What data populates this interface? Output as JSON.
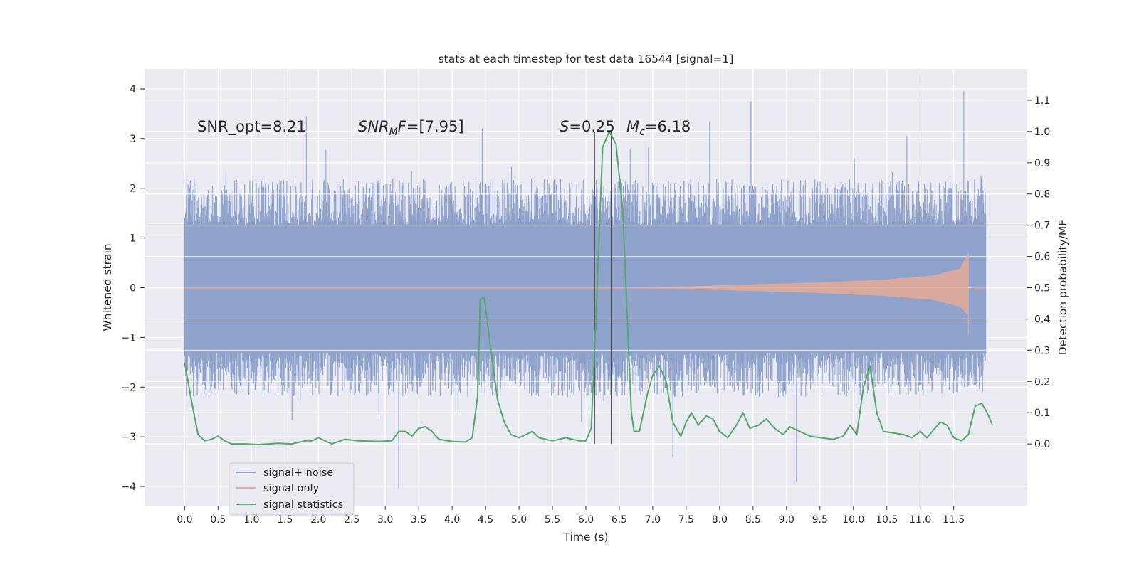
{
  "chart_data": {
    "type": "line",
    "title": "stats at each timestep for test data 16544 [signal=1]",
    "xlabel": "Time (s)",
    "ylabel_left": "Whitened strain",
    "ylabel_right": "Detection probability/MF",
    "xlim": [
      -0.6,
      12.6
    ],
    "ylim_left": [
      -4.4,
      4.4
    ],
    "ylim_right": [
      -0.2,
      1.2
    ],
    "x_ticks": [
      "0.0",
      "0.5",
      "1.0",
      "1.5",
      "2.0",
      "2.5",
      "3.0",
      "3.5",
      "4.0",
      "4.5",
      "5.0",
      "5.5",
      "6.0",
      "6.5",
      "7.0",
      "7.5",
      "8.0",
      "8.5",
      "9.0",
      "9.5",
      "10.0",
      "10.5",
      "11.0",
      "11.5"
    ],
    "y_ticks_left": [
      "4",
      "3",
      "2",
      "1",
      "0",
      "−1",
      "−2",
      "−3",
      "−4"
    ],
    "y_ticks_right": [
      "1.1",
      "1.0",
      "0.9",
      "0.8",
      "0.7",
      "0.6",
      "0.5",
      "0.4",
      "0.3",
      "0.2",
      "0.1",
      "0.0"
    ],
    "grid": true,
    "legend_position": "lower-left",
    "annotations": {
      "snr_opt": "SNR_opt=8.21",
      "snr_mf": "[7.95]",
      "s": "0.25",
      "mc": "6.18"
    },
    "vertical_markers": [
      6.13,
      6.38
    ],
    "series": [
      {
        "name": "signal+ noise",
        "color": "#8fa2cc",
        "x_range": [
          0.0,
          11.98
        ],
        "body_band": [
          -1.3,
          1.25
        ],
        "typical_excursion": [
          -2.2,
          2.2
        ],
        "peaks": [
          {
            "x": 8.47,
            "y": 3.75
          },
          {
            "x": 11.65,
            "y": 3.95
          },
          {
            "x": 1.82,
            "y": 3.45
          },
          {
            "x": 7.85,
            "y": 3.35
          },
          {
            "x": 3.2,
            "y": -4.05
          },
          {
            "x": 9.15,
            "y": -3.9
          },
          {
            "x": 7.3,
            "y": -3.4
          },
          {
            "x": 4.45,
            "y": 3.2
          },
          {
            "x": 10.8,
            "y": 3.05
          }
        ]
      },
      {
        "name": "signal only",
        "color": "#e6ab95",
        "envelope": [
          [
            6.5,
            0.0
          ],
          [
            7.5,
            0.02
          ],
          [
            8.5,
            0.06
          ],
          [
            9.5,
            0.1
          ],
          [
            10.5,
            0.16
          ],
          [
            11.2,
            0.24
          ],
          [
            11.6,
            0.38
          ],
          [
            11.72,
            0.7
          ]
        ],
        "lower_tip": [
          11.72,
          -0.95
        ],
        "end": [
          11.75,
          0.0
        ]
      },
      {
        "name": "signal statistics",
        "color": "#55a868",
        "axis": "right",
        "points": [
          [
            0.0,
            0.26
          ],
          [
            0.1,
            0.14
          ],
          [
            0.2,
            0.03
          ],
          [
            0.3,
            0.01
          ],
          [
            0.4,
            0.015
          ],
          [
            0.5,
            0.025
          ],
          [
            0.6,
            0.01
          ],
          [
            0.7,
            0.0
          ],
          [
            0.9,
            0.0
          ],
          [
            1.1,
            -0.002
          ],
          [
            1.4,
            0.002
          ],
          [
            1.6,
            0.0
          ],
          [
            1.8,
            0.01
          ],
          [
            1.9,
            0.01
          ],
          [
            2.0,
            0.02
          ],
          [
            2.2,
            0.0
          ],
          [
            2.4,
            0.015
          ],
          [
            2.6,
            0.01
          ],
          [
            2.9,
            0.008
          ],
          [
            3.1,
            0.01
          ],
          [
            3.2,
            0.04
          ],
          [
            3.3,
            0.04
          ],
          [
            3.4,
            0.025
          ],
          [
            3.5,
            0.05
          ],
          [
            3.6,
            0.055
          ],
          [
            3.7,
            0.04
          ],
          [
            3.8,
            0.015
          ],
          [
            4.0,
            0.008
          ],
          [
            4.2,
            0.006
          ],
          [
            4.3,
            0.02
          ],
          [
            4.38,
            0.15
          ],
          [
            4.42,
            0.46
          ],
          [
            4.48,
            0.47
          ],
          [
            4.58,
            0.3
          ],
          [
            4.68,
            0.14
          ],
          [
            4.78,
            0.07
          ],
          [
            4.88,
            0.03
          ],
          [
            5.0,
            0.02
          ],
          [
            5.1,
            0.03
          ],
          [
            5.2,
            0.04
          ],
          [
            5.3,
            0.02
          ],
          [
            5.5,
            0.01
          ],
          [
            5.7,
            0.02
          ],
          [
            5.9,
            0.01
          ],
          [
            6.0,
            0.01
          ],
          [
            6.08,
            0.05
          ],
          [
            6.15,
            0.4
          ],
          [
            6.25,
            0.95
          ],
          [
            6.35,
            1.0
          ],
          [
            6.45,
            0.96
          ],
          [
            6.55,
            0.75
          ],
          [
            6.62,
            0.4
          ],
          [
            6.68,
            0.1
          ],
          [
            6.72,
            0.04
          ],
          [
            6.8,
            0.04
          ],
          [
            6.92,
            0.16
          ],
          [
            7.0,
            0.22
          ],
          [
            7.1,
            0.25
          ],
          [
            7.2,
            0.2
          ],
          [
            7.3,
            0.07
          ],
          [
            7.35,
            0.05
          ],
          [
            7.42,
            0.025
          ],
          [
            7.5,
            0.07
          ],
          [
            7.58,
            0.1
          ],
          [
            7.68,
            0.06
          ],
          [
            7.8,
            0.09
          ],
          [
            7.9,
            0.08
          ],
          [
            8.0,
            0.04
          ],
          [
            8.12,
            0.02
          ],
          [
            8.25,
            0.06
          ],
          [
            8.35,
            0.1
          ],
          [
            8.45,
            0.05
          ],
          [
            8.58,
            0.06
          ],
          [
            8.7,
            0.08
          ],
          [
            8.82,
            0.05
          ],
          [
            8.95,
            0.03
          ],
          [
            9.05,
            0.055
          ],
          [
            9.2,
            0.04
          ],
          [
            9.35,
            0.025
          ],
          [
            9.5,
            0.02
          ],
          [
            9.7,
            0.015
          ],
          [
            9.85,
            0.025
          ],
          [
            9.95,
            0.06
          ],
          [
            10.05,
            0.03
          ],
          [
            10.15,
            0.18
          ],
          [
            10.25,
            0.25
          ],
          [
            10.35,
            0.1
          ],
          [
            10.45,
            0.04
          ],
          [
            10.6,
            0.035
          ],
          [
            10.75,
            0.03
          ],
          [
            10.88,
            0.02
          ],
          [
            11.0,
            0.04
          ],
          [
            11.1,
            0.02
          ],
          [
            11.3,
            0.07
          ],
          [
            11.4,
            0.06
          ],
          [
            11.5,
            0.02
          ],
          [
            11.62,
            0.01
          ],
          [
            11.72,
            0.03
          ],
          [
            11.82,
            0.12
          ],
          [
            11.92,
            0.13
          ],
          [
            12.0,
            0.1
          ],
          [
            12.08,
            0.06
          ]
        ]
      }
    ]
  }
}
